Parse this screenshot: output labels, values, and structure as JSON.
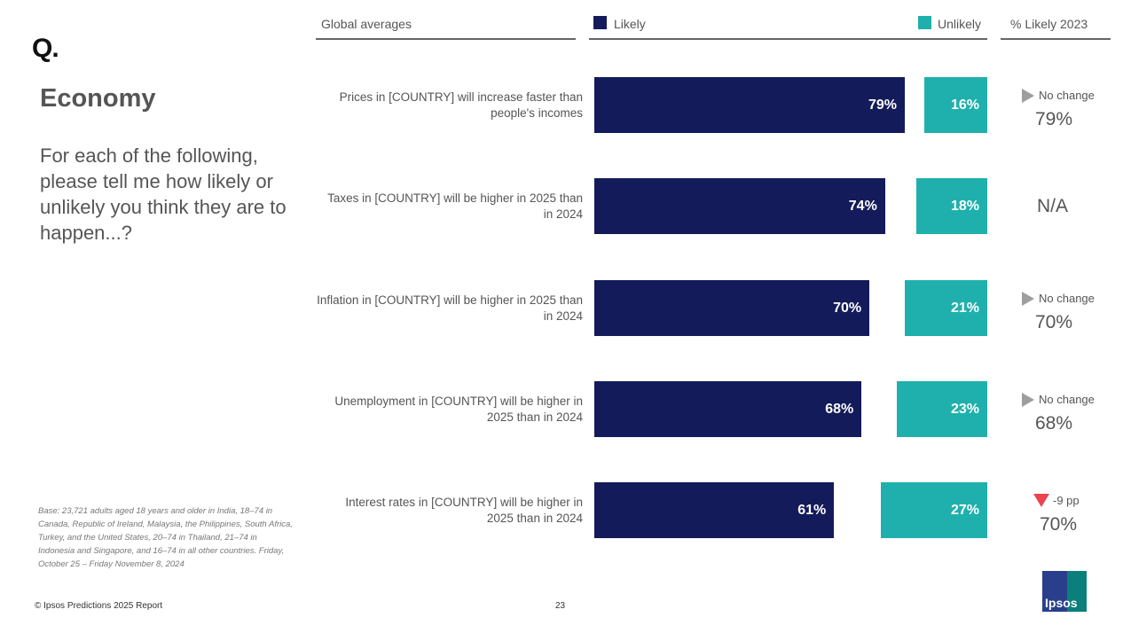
{
  "slide": {
    "section_title": "Economy",
    "question": "For each of the following, please tell me how likely or unlikely you think they are to happen...?",
    "base_note": "Base: 23,721 adults aged 18 years and older in India, 18–74 in Canada, Republic of Ireland, Malaysia, the Philippines, South Africa, Turkey, and the United States, 20–74 in Thailand, 21–74 in Indonesia and Singapore, and 16–74 in all other countries. Friday, October 25 – Friday November 8, 2024",
    "copyright": "© Ipsos Predictions 2025 Report",
    "page_number": "23",
    "logo_mark": "Q.",
    "brand": "Ipsos"
  },
  "headers": {
    "global": "Global averages",
    "likely": "Likely",
    "unlikely": "Unlikely",
    "prev": "% Likely 2023"
  },
  "colors": {
    "likely": "#131b5a",
    "unlikely": "#1fb0ad",
    "trend_down": "#e8454f",
    "trend_neutral": "#9e9e9e"
  },
  "chart_data": {
    "type": "bar",
    "title": "Global averages",
    "categories": [
      "Prices in [COUNTRY] will increase faster than people's incomes",
      "Taxes in [COUNTRY] will be higher in 2025 than in 2024",
      "Inflation in [COUNTRY] will be higher in 2025 than in 2024",
      "Unemployment in [COUNTRY] will be higher in 2025 than in 2024",
      "Interest rates in [COUNTRY] will be higher in 2025 than in 2024"
    ],
    "series": [
      {
        "name": "Likely",
        "values": [
          79,
          74,
          70,
          68,
          61
        ]
      },
      {
        "name": "Unlikely",
        "values": [
          16,
          18,
          21,
          23,
          27
        ]
      }
    ],
    "value_labels": {
      "likely": [
        "79%",
        "74%",
        "70%",
        "68%",
        "61%"
      ],
      "unlikely": [
        "16%",
        "18%",
        "21%",
        "23%",
        "27%"
      ]
    },
    "xlim": [
      0,
      100
    ],
    "legend": "top",
    "prev_2023": {
      "label": "% Likely 2023",
      "trend": [
        "No change",
        "",
        "No change",
        "No change",
        "-9 pp"
      ],
      "trend_type": [
        "neutral",
        "none",
        "neutral",
        "neutral",
        "down"
      ],
      "values": [
        "79%",
        "N/A",
        "70%",
        "68%",
        "70%"
      ]
    }
  }
}
